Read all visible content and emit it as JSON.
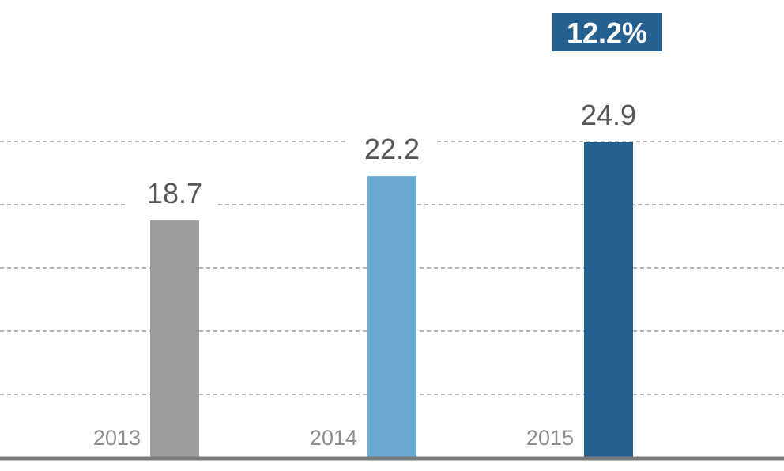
{
  "chart_data": {
    "type": "bar",
    "categories": [
      "2013",
      "2014",
      "2015"
    ],
    "values": [
      18.7,
      22.2,
      24.9
    ],
    "value_labels": [
      "18.7",
      "22.2",
      "24.9"
    ],
    "colors": [
      "#9d9d9c",
      "#6aaacf",
      "#256090"
    ],
    "ylim": [
      0,
      25
    ],
    "grid": true,
    "growth_badge": {
      "label": "12.2%",
      "color": "#256090"
    }
  }
}
